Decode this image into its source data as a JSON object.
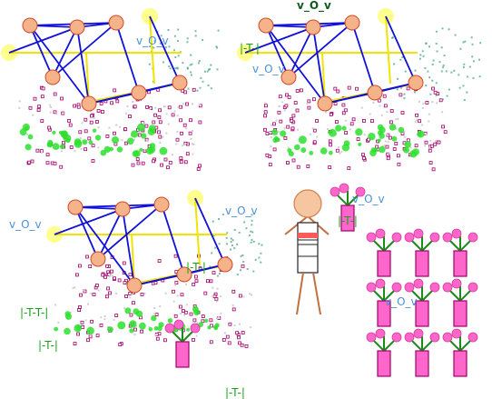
{
  "labels": {
    "vov": "v_O_v",
    "t_marker": "|-T-|",
    "double_t": "|-T-T-|"
  },
  "colors": {
    "node_fill": "#f5b38a",
    "node_stroke": "#d24a2a",
    "edge": "#1010d8",
    "highlight": "#ffff70",
    "yellow_line": "#f0e400",
    "pink": "#ff66cc",
    "magenta": "#a0006a",
    "green": "#2ee02e",
    "teal": "#40a080",
    "label_blue": "#4a90d9",
    "label_green": "#1aa01a"
  },
  "icons": {
    "graph": "network-graph-icon",
    "stick_figure": "stick-figure-icon",
    "flower_pot": "flower-pot-icon"
  }
}
